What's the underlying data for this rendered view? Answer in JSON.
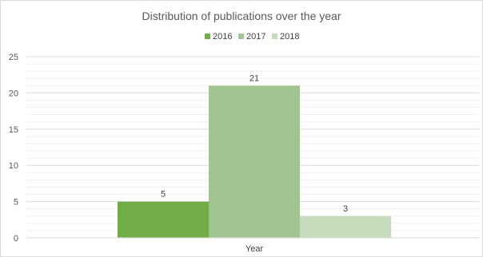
{
  "chart_data": {
    "type": "bar",
    "title": "Distribution of publications over the year",
    "categories": [
      "Year"
    ],
    "series": [
      {
        "name": "2016",
        "values": [
          5
        ],
        "color": "#70ad47"
      },
      {
        "name": "2017",
        "values": [
          21
        ],
        "color": "#a1c490"
      },
      {
        "name": "2018",
        "values": [
          3
        ],
        "color": "#c5dbbb"
      }
    ],
    "xlabel": "Year",
    "ylabel": "",
    "ylim": [
      0,
      25
    ],
    "yticks": [
      0,
      5,
      10,
      15,
      20,
      25
    ],
    "grid": true,
    "legend": "top-center",
    "data_labels": true
  }
}
